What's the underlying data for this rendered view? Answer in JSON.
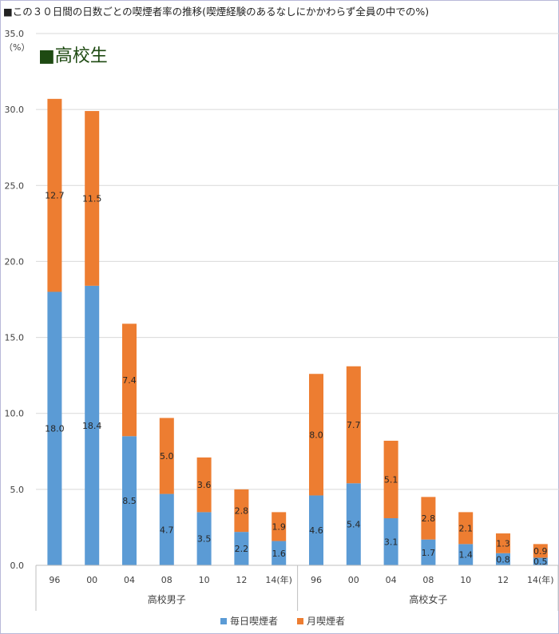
{
  "page": {
    "title": "■この３０日間の日数ごとの喫煙者率の推移(喫煙経験のあるなしにかかわらず全員の中での%)"
  },
  "colors": {
    "daily": "#5b9bd5",
    "monthly": "#ed7d31",
    "heading": "#1e4a12",
    "grid": "#d9d9d9",
    "axis_text": "#404040"
  },
  "chart_data": {
    "type": "bar",
    "stacked": true,
    "heading": "■高校生",
    "y_unit": "（%）",
    "ylim": [
      0,
      35
    ],
    "y_ticks": [
      "0.0",
      "5.0",
      "10.0",
      "15.0",
      "20.0",
      "25.0",
      "30.0",
      "35.0"
    ],
    "grid": true,
    "legend_position": "bottom",
    "groups": [
      {
        "name": "高校男子",
        "categories": [
          "96",
          "00",
          "04",
          "08",
          "10",
          "12",
          "14(年)"
        ]
      },
      {
        "name": "高校女子",
        "categories": [
          "96",
          "00",
          "04",
          "08",
          "10",
          "12",
          "14(年)"
        ]
      }
    ],
    "series": [
      {
        "name": "毎日喫煙者",
        "color_key": "daily",
        "values": [
          18.0,
          18.4,
          8.5,
          4.7,
          3.5,
          2.2,
          1.6,
          4.6,
          5.4,
          3.1,
          1.7,
          1.4,
          0.8,
          0.5
        ]
      },
      {
        "name": "月喫煙者",
        "color_key": "monthly",
        "values": [
          12.7,
          11.5,
          7.4,
          5.0,
          3.6,
          2.8,
          1.9,
          8.0,
          7.7,
          5.1,
          2.8,
          2.1,
          1.3,
          0.9
        ]
      }
    ]
  }
}
